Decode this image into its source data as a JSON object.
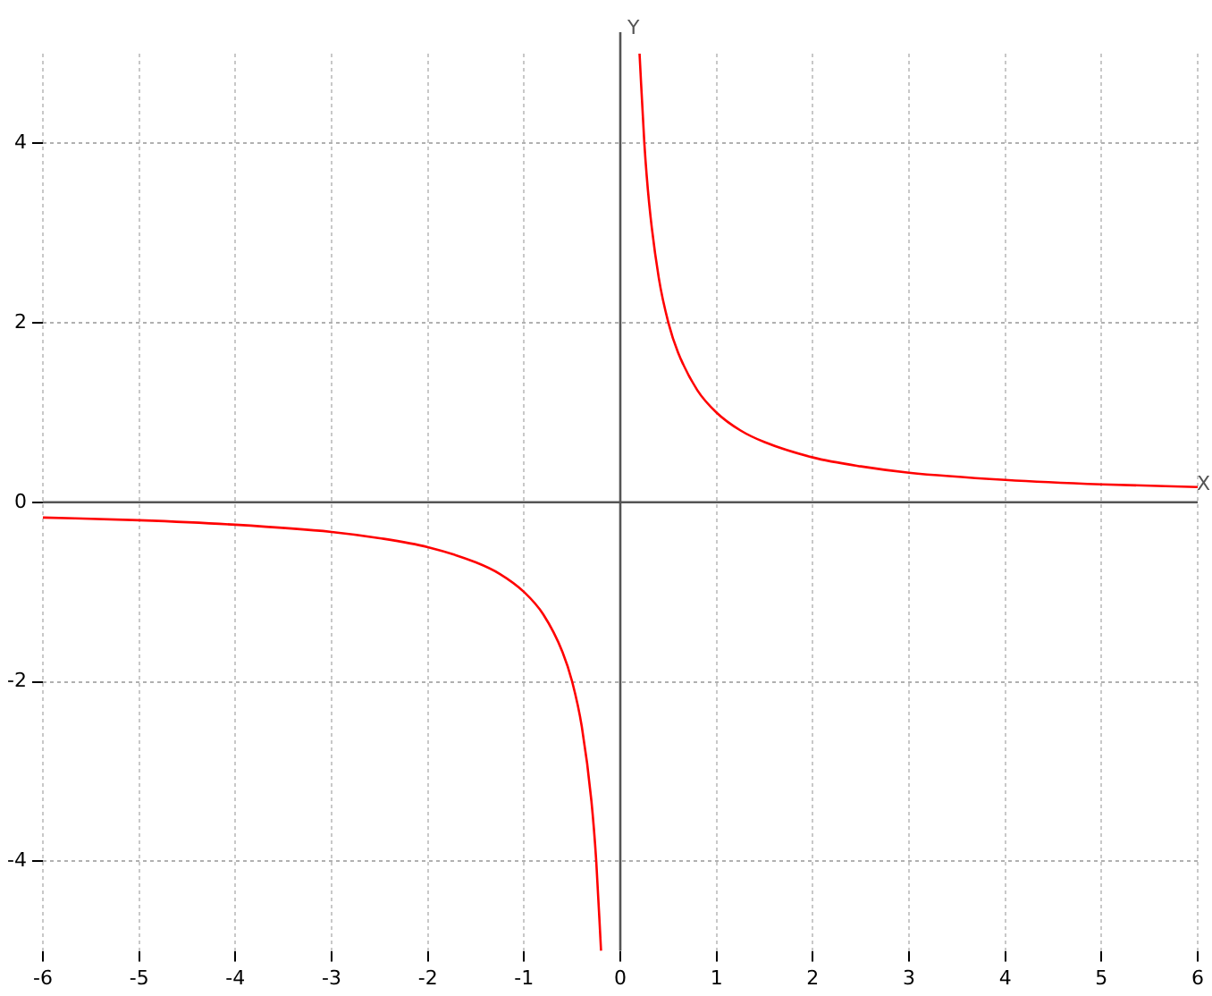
{
  "chart_data": {
    "type": "line",
    "xlabel": "X",
    "ylabel": "Y",
    "series": [
      {
        "color": "#ff0000",
        "x": [
          -6,
          -5,
          -4,
          -3,
          -2.5,
          -2,
          -1.5,
          -1.25,
          -1,
          -0.8,
          -0.6,
          -0.5,
          -0.4,
          -0.3,
          -0.25,
          -0.2
        ],
        "values": [
          -0.17,
          -0.2,
          -0.25,
          -0.33,
          -0.4,
          -0.5,
          -0.67,
          -0.8,
          -1,
          -1.25,
          -1.67,
          -2,
          -2.5,
          -3.33,
          -4,
          -5
        ]
      },
      {
        "color": "#ff0000",
        "x": [
          0.2,
          0.25,
          0.3,
          0.4,
          0.5,
          0.6,
          0.8,
          1,
          1.25,
          1.5,
          2,
          2.5,
          3,
          4,
          5,
          6
        ],
        "values": [
          5,
          4,
          3.33,
          2.5,
          2,
          1.67,
          1.25,
          1,
          0.8,
          0.67,
          0.5,
          0.4,
          0.33,
          0.25,
          0.2,
          0.17
        ]
      }
    ],
    "xlim": [
      -6,
      6
    ],
    "xticks": [
      -6,
      -5,
      -4,
      -3,
      -2,
      -1,
      0,
      1,
      2,
      3,
      4,
      5,
      6
    ],
    "ylim": [
      -5,
      5
    ],
    "yticks": [
      -4,
      -2,
      0,
      2,
      4
    ],
    "grid": true,
    "marker": "none",
    "line_style": "solid"
  }
}
